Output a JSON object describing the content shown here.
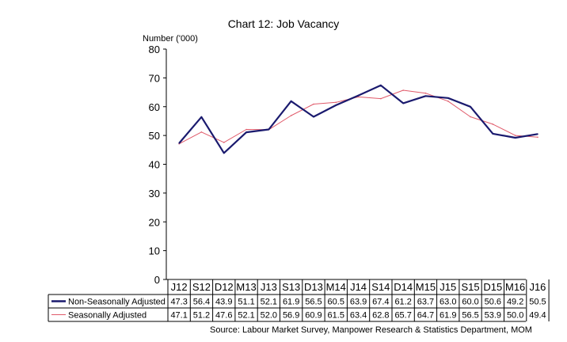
{
  "chart_data": {
    "type": "line",
    "title": "Chart 12: Job Vacancy",
    "ylabel": "Number ('000)",
    "source": "Source: Labour Market Survey, Manpower Research & Statistics Department, MOM",
    "ylim": [
      0,
      80
    ],
    "yticks": [
      "0",
      "10",
      "20",
      "30",
      "40",
      "50",
      "60",
      "70",
      "80"
    ],
    "categories": [
      "J12",
      "S12",
      "D12",
      "M13",
      "J13",
      "S13",
      "D13",
      "M14",
      "J14",
      "S14",
      "D14",
      "M15",
      "J15",
      "S15",
      "D15",
      "M16",
      "J16"
    ],
    "series": [
      {
        "name": "Non-Seasonally Adjusted",
        "color": "#1a1a6e",
        "values": [
          47.3,
          56.4,
          43.9,
          51.1,
          52.1,
          61.9,
          56.5,
          60.5,
          63.9,
          67.4,
          61.2,
          63.7,
          63.0,
          60.0,
          50.6,
          49.2,
          50.5
        ],
        "labels": [
          "47.3",
          "56.4",
          "43.9",
          "51.1",
          "52.1",
          "61.9",
          "56.5",
          "60.5",
          "63.9",
          "67.4",
          "61.2",
          "63.7",
          "63.0",
          "60.0",
          "50.6",
          "49.2",
          "50.5"
        ]
      },
      {
        "name": "Seasonally Adjusted",
        "color": "#e05a6a",
        "values": [
          47.1,
          51.2,
          47.6,
          52.1,
          52.0,
          56.9,
          60.9,
          61.5,
          63.4,
          62.8,
          65.7,
          64.7,
          61.9,
          56.5,
          53.9,
          50.0,
          49.4
        ],
        "labels": [
          "47.1",
          "51.2",
          "47.6",
          "52.1",
          "52.0",
          "56.9",
          "60.9",
          "61.5",
          "63.4",
          "62.8",
          "65.7",
          "64.7",
          "61.9",
          "56.5",
          "53.9",
          "50.0",
          "49.4"
        ]
      }
    ]
  }
}
